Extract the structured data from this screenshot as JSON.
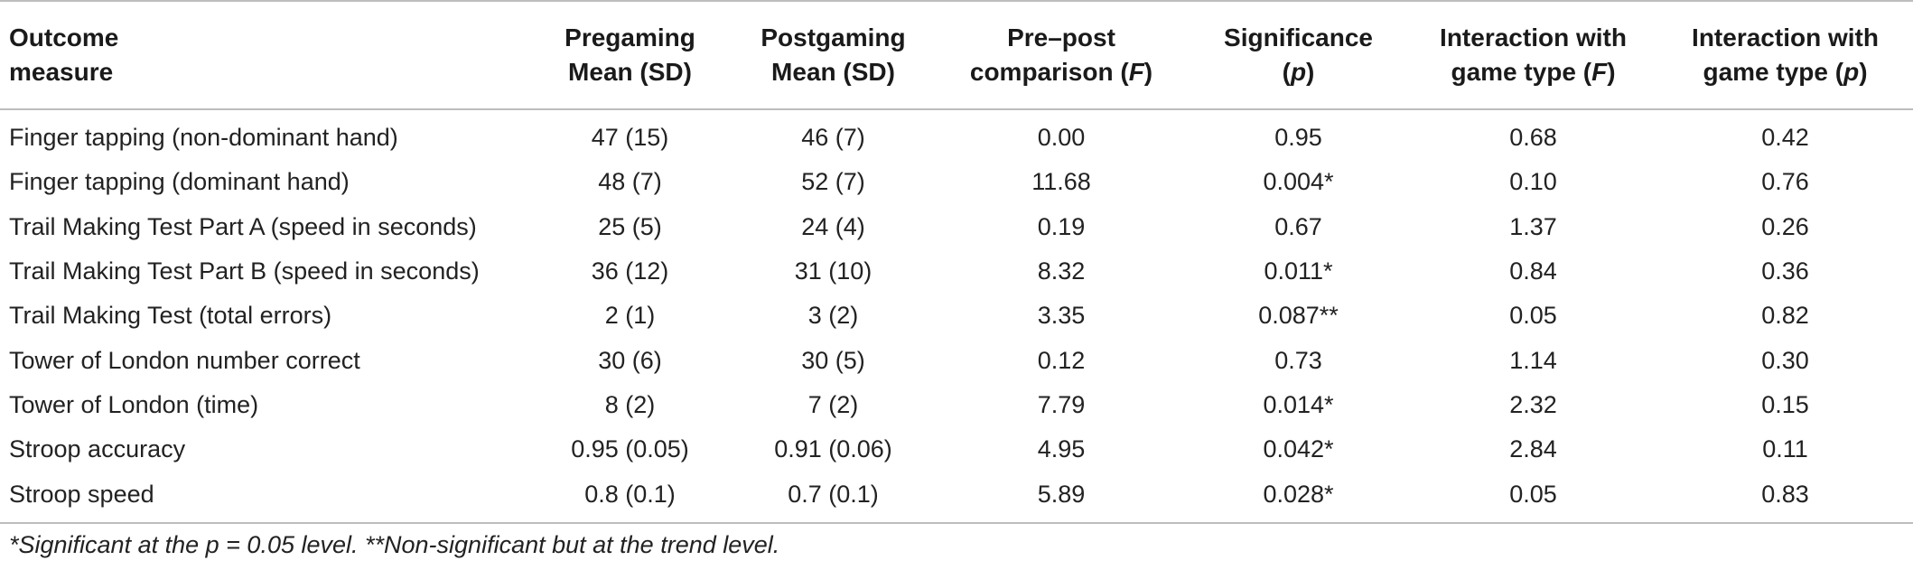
{
  "table": {
    "headers": [
      {
        "line1": "Outcome",
        "line2": "measure",
        "line2_italic": "",
        "line2_tail": ""
      },
      {
        "line1": "Pregaming",
        "line2": "Mean (SD)",
        "line2_italic": "",
        "line2_tail": ""
      },
      {
        "line1": "Postgaming",
        "line2": "Mean (SD)",
        "line2_italic": "",
        "line2_tail": ""
      },
      {
        "line1": "Pre–post",
        "line2": "comparison (",
        "line2_italic": "F",
        "line2_tail": ")"
      },
      {
        "line1": "Significance",
        "line2": "(",
        "line2_italic": "p",
        "line2_tail": ")"
      },
      {
        "line1": "Interaction with",
        "line2": "game type (",
        "line2_italic": "F",
        "line2_tail": ")"
      },
      {
        "line1": "Interaction with",
        "line2": "game type (",
        "line2_italic": "p",
        "line2_tail": ")"
      }
    ],
    "rows": [
      [
        "Finger tapping (non-dominant hand)",
        "47 (15)",
        "46 (7)",
        "0.00",
        "0.95",
        "0.68",
        "0.42"
      ],
      [
        "Finger tapping (dominant hand)",
        "48 (7)",
        "52 (7)",
        "11.68",
        "0.004*",
        "0.10",
        "0.76"
      ],
      [
        "Trail Making Test Part A (speed in seconds)",
        "25 (5)",
        "24 (4)",
        "0.19",
        "0.67",
        "1.37",
        "0.26"
      ],
      [
        "Trail Making Test Part B (speed in seconds)",
        "36 (12)",
        "31 (10)",
        "8.32",
        "0.011*",
        "0.84",
        "0.36"
      ],
      [
        "Trail Making Test (total errors)",
        "2 (1)",
        "3 (2)",
        "3.35",
        "0.087**",
        "0.05",
        "0.82"
      ],
      [
        "Tower of London number correct",
        "30 (6)",
        "30 (5)",
        "0.12",
        "0.73",
        "1.14",
        "0.30"
      ],
      [
        "Tower of London (time)",
        "8 (2)",
        "7 (2)",
        "7.79",
        "0.014*",
        "2.32",
        "0.15"
      ],
      [
        "Stroop accuracy",
        "0.95 (0.05)",
        "0.91 (0.06)",
        "4.95",
        "0.042*",
        "2.84",
        "0.11"
      ],
      [
        "Stroop speed",
        "0.8 (0.1)",
        "0.7 (0.1)",
        "5.89",
        "0.028*",
        "0.05",
        "0.83"
      ]
    ]
  },
  "footnote": "*Significant at the p = 0.05 level. **Non-significant but at the trend level."
}
